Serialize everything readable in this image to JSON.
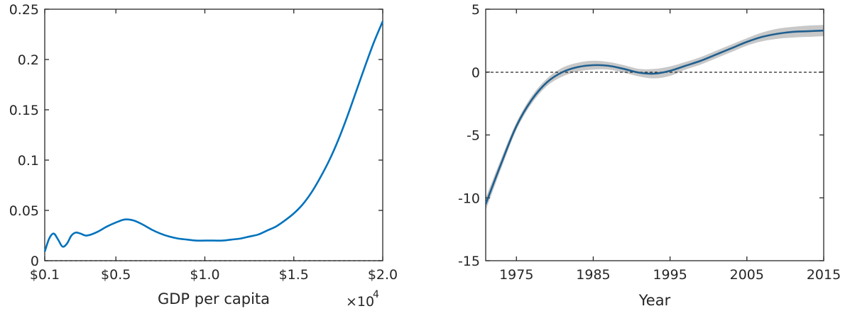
{
  "chart_data": [
    {
      "type": "line",
      "title": "",
      "xlabel": "GDP per capita",
      "ylabel": "",
      "x_exponent_label": "×10",
      "x_exponent_power": "4",
      "xlim": [
        0.1,
        2.0
      ],
      "ylim": [
        0,
        0.25
      ],
      "xticks": [
        0.1,
        0.5,
        1.0,
        1.5,
        2.0
      ],
      "xtick_labels": [
        "$0.1",
        "$0.5",
        "$1.0",
        "$1.5",
        "$2.0"
      ],
      "yticks": [
        0,
        0.05,
        0.1,
        0.15,
        0.2,
        0.25
      ],
      "ytick_labels": [
        "0",
        "0.05",
        "0.1",
        "0.15",
        "0.2",
        "0.25"
      ],
      "grid": false,
      "reference_line": {
        "y": 0,
        "style": "dashed"
      },
      "series": [
        {
          "color": "#0072BD",
          "x": [
            0.1,
            0.125,
            0.15,
            0.175,
            0.2,
            0.225,
            0.25,
            0.275,
            0.3,
            0.33,
            0.36,
            0.4,
            0.45,
            0.5,
            0.55,
            0.6,
            0.65,
            0.7,
            0.75,
            0.8,
            0.85,
            0.9,
            0.95,
            1.0,
            1.05,
            1.1,
            1.15,
            1.2,
            1.25,
            1.3,
            1.35,
            1.4,
            1.45,
            1.5,
            1.55,
            1.6,
            1.65,
            1.7,
            1.75,
            1.8,
            1.85,
            1.9,
            1.95,
            2.0
          ],
          "y": [
            0.009,
            0.022,
            0.027,
            0.021,
            0.014,
            0.017,
            0.025,
            0.028,
            0.027,
            0.025,
            0.026,
            0.029,
            0.034,
            0.038,
            0.041,
            0.04,
            0.036,
            0.031,
            0.027,
            0.024,
            0.022,
            0.021,
            0.02,
            0.02,
            0.02,
            0.02,
            0.021,
            0.022,
            0.024,
            0.026,
            0.03,
            0.034,
            0.04,
            0.047,
            0.056,
            0.068,
            0.083,
            0.1,
            0.12,
            0.143,
            0.168,
            0.193,
            0.217,
            0.238
          ]
        }
      ]
    },
    {
      "type": "line",
      "title": "",
      "xlabel": "Year",
      "ylabel": "",
      "xlim": [
        1971,
        2015
      ],
      "ylim": [
        -15,
        5
      ],
      "xticks": [
        1975,
        1985,
        1995,
        2005,
        2015
      ],
      "xtick_labels": [
        "1975",
        "1985",
        "1995",
        "2005",
        "2015"
      ],
      "yticks": [
        -15,
        -10,
        -5,
        0,
        5
      ],
      "ytick_labels": [
        "-15",
        "-10",
        "-5",
        "0",
        "5"
      ],
      "grid": false,
      "reference_line": {
        "y": 0,
        "style": "dashed"
      },
      "series": [
        {
          "color": "#1F5F8F",
          "band_color": "#C8C8C8",
          "x": [
            1971,
            1973,
            1975,
            1977,
            1979,
            1981,
            1983,
            1985,
            1987,
            1989,
            1991,
            1993,
            1995,
            1997,
            1999,
            2001,
            2003,
            2005,
            2007,
            2009,
            2011,
            2013,
            2015
          ],
          "y": [
            -10.5,
            -7.3,
            -4.3,
            -2.2,
            -0.8,
            0.0,
            0.4,
            0.55,
            0.5,
            0.25,
            -0.05,
            -0.12,
            0.1,
            0.5,
            0.9,
            1.4,
            1.9,
            2.4,
            2.8,
            3.05,
            3.2,
            3.25,
            3.3
          ],
          "lower": [
            -11.0,
            -7.7,
            -4.6,
            -2.5,
            -1.1,
            -0.35,
            0.05,
            0.2,
            0.2,
            -0.05,
            -0.35,
            -0.5,
            -0.3,
            0.2,
            0.6,
            1.1,
            1.6,
            2.1,
            2.45,
            2.65,
            2.75,
            2.8,
            2.85
          ],
          "upper": [
            -10.0,
            -6.9,
            -4.0,
            -1.9,
            -0.5,
            0.35,
            0.75,
            0.9,
            0.8,
            0.55,
            0.25,
            0.25,
            0.45,
            0.8,
            1.2,
            1.7,
            2.2,
            2.7,
            3.15,
            3.45,
            3.6,
            3.7,
            3.75
          ]
        }
      ]
    }
  ]
}
